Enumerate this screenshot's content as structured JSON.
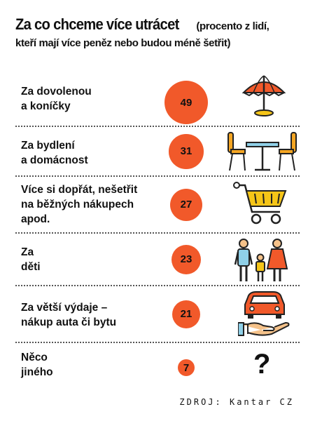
{
  "title": {
    "main": "Za co chceme více utrácet",
    "sub": "(procento z lidí,",
    "sub2": "kteří mají více peněz nebo budou méně šetřit)"
  },
  "chart_data": {
    "type": "bubble",
    "categories": [
      "Za dovolenou a koníčky",
      "Za bydlení a domácnost",
      "Více si dopřát, nešetřit na běžných nákupech apod.",
      "Za děti",
      "Za větší výdaje – nákup auta či bytu",
      "Něco jiného"
    ],
    "values": [
      49,
      31,
      27,
      23,
      21,
      7
    ],
    "unit": "%",
    "bubble_color": "#f1592a"
  },
  "rows": [
    {
      "line1": "Za dovolenou",
      "line2": "a koníčky",
      "line3": "",
      "value": "49",
      "icon": "beach-umbrella-icon"
    },
    {
      "line1": "Za bydlení",
      "line2": "a domácnost",
      "line3": "",
      "value": "31",
      "icon": "table-and-chairs-icon"
    },
    {
      "line1": "Více si dopřát, nešetřit",
      "line2": "na běžných nákupech",
      "line3": "apod.",
      "value": "27",
      "icon": "shopping-cart-icon"
    },
    {
      "line1": "Za",
      "line2": "děti",
      "line3": "",
      "value": "23",
      "icon": "family-icon"
    },
    {
      "line1": "Za větší výdaje –",
      "line2": "nákup auta či bytu",
      "line3": "",
      "value": "21",
      "icon": "car-on-hand-icon"
    },
    {
      "line1": "Něco",
      "line2": "jiného",
      "line3": "",
      "value": "7",
      "icon": "question-mark-icon"
    }
  ],
  "question_mark": "?",
  "source": "ZDROJ: Kantar CZ"
}
